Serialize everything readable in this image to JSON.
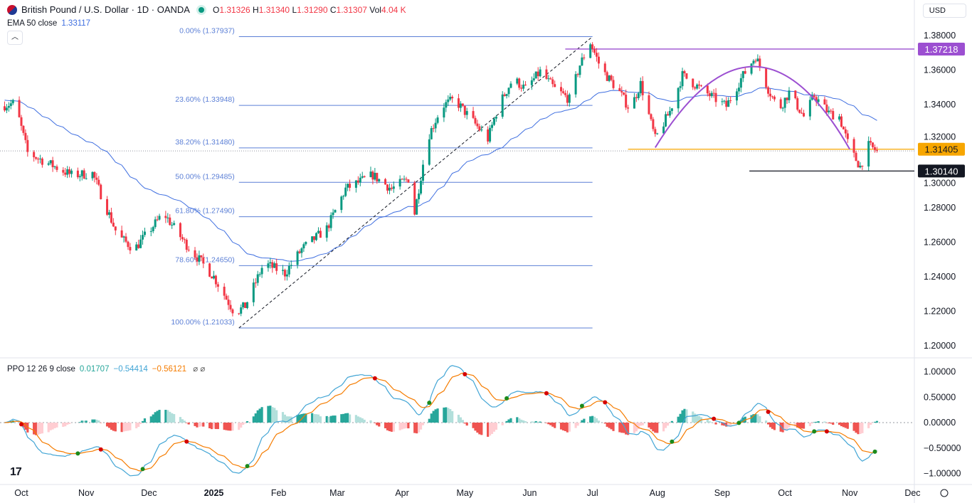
{
  "header": {
    "symbol_title": "British Pound / U.S. Dollar · 1D · OANDA",
    "ohlc": {
      "o_label": "O",
      "o": "1.31326",
      "h_label": "H",
      "h": "1.31340",
      "l_label": "L",
      "l": "1.31290",
      "c_label": "C",
      "c": "1.31307",
      "vol_label": "Vol",
      "vol": "4.04 K"
    },
    "ema_label": "EMA 50 close",
    "ema_value": "1.33117",
    "collapse_icon": "chevron-up-icon",
    "currency": "USD"
  },
  "ppo_legend": {
    "label": "PPO 12 26 9 close",
    "hist": "0.01707",
    "ppo": "−0.54414",
    "signal": "−0.56121",
    "icons": "⌀ ⌀"
  },
  "colors": {
    "up": "#089981",
    "down": "#f23645",
    "ema": "#3e6ee0",
    "fib": "#5b7fd6",
    "resistance": "#9c4fd1",
    "support": "#f7a600",
    "low": "#131722",
    "ppo": "#42a5d5",
    "signal": "#f57c00"
  },
  "chart_data": {
    "type": "candlestick",
    "title": "British Pound / U.S. Dollar · 1D · OANDA",
    "close_path": [
      [
        "2024-09-21",
        1.339
      ],
      [
        "2024-09-28",
        1.341
      ],
      [
        "2024-10-04",
        1.312
      ],
      [
        "2024-10-25",
        1.299
      ],
      [
        "2024-11-04",
        1.3
      ],
      [
        "2024-11-16",
        1.264
      ],
      [
        "2024-11-24",
        1.256
      ],
      [
        "2024-12-08",
        1.277
      ],
      [
        "2024-12-18",
        1.26
      ],
      [
        "2025-01-01",
        1.24
      ],
      [
        "2025-01-11",
        1.219
      ],
      [
        "2025-01-16",
        1.223
      ],
      [
        "2025-01-25",
        1.248
      ],
      [
        "2025-02-04",
        1.242
      ],
      [
        "2025-02-12",
        1.256
      ],
      [
        "2025-02-24",
        1.268
      ],
      [
        "2025-03-05",
        1.291
      ],
      [
        "2025-03-18",
        1.299
      ],
      [
        "2025-03-27",
        1.291
      ],
      [
        "2025-04-04",
        1.297
      ],
      [
        "2025-04-07",
        1.277
      ],
      [
        "2025-04-13",
        1.32
      ],
      [
        "2025-04-20",
        1.339
      ],
      [
        "2025-04-26",
        1.343
      ],
      [
        "2025-05-05",
        1.33
      ],
      [
        "2025-05-12",
        1.32
      ],
      [
        "2025-05-17",
        1.339
      ],
      [
        "2025-05-24",
        1.355
      ],
      [
        "2025-05-30",
        1.349
      ],
      [
        "2025-06-06",
        1.359
      ],
      [
        "2025-06-13",
        1.349
      ],
      [
        "2025-06-20",
        1.343
      ],
      [
        "2025-06-25",
        1.363
      ],
      [
        "2025-06-30",
        1.376
      ],
      [
        "2025-07-05",
        1.361
      ],
      [
        "2025-07-14",
        1.347
      ],
      [
        "2025-07-19",
        1.337
      ],
      [
        "2025-07-24",
        1.352
      ],
      [
        "2025-07-31",
        1.32
      ],
      [
        "2025-08-07",
        1.336
      ],
      [
        "2025-08-13",
        1.357
      ],
      [
        "2025-08-24",
        1.347
      ],
      [
        "2025-09-03",
        1.339
      ],
      [
        "2025-09-10",
        1.355
      ],
      [
        "2025-09-17",
        1.368
      ],
      [
        "2025-09-23",
        1.349
      ],
      [
        "2025-09-28",
        1.337
      ],
      [
        "2025-10-03",
        1.347
      ],
      [
        "2025-10-10",
        1.333
      ],
      [
        "2025-10-15",
        1.345
      ],
      [
        "2025-10-22",
        1.335
      ],
      [
        "2025-10-27",
        1.333
      ],
      [
        "2025-11-01",
        1.314
      ],
      [
        "2025-11-06",
        1.304
      ],
      [
        "2025-11-10",
        1.316
      ],
      [
        "2025-11-14",
        1.313
      ]
    ],
    "fibonacci": {
      "from": [
        "2025-01-13",
        1.21033
      ],
      "to": [
        "2025-07-01",
        1.37937
      ],
      "levels": [
        {
          "label": "0.00% (1.37937)",
          "value": 1.37937
        },
        {
          "label": "23.60% (1.33948)",
          "value": 1.33948
        },
        {
          "label": "38.20% (1.31480)",
          "value": 1.3148
        },
        {
          "label": "50.00% (1.29485)",
          "value": 1.29485
        },
        {
          "label": "61.80% (1.27490)",
          "value": 1.2749
        },
        {
          "label": "78.60% (1.24650)",
          "value": 1.2465
        },
        {
          "label": "100.00% (1.21033)",
          "value": 1.21033
        }
      ]
    },
    "horizontal_lines": [
      {
        "label": "1.37218",
        "value": 1.37218,
        "from": "2025-06-18",
        "color": "#9c4fd1"
      },
      {
        "label": "1.31405",
        "value": 1.31405,
        "from": "2025-07-18",
        "color": "#f7a600"
      },
      {
        "label": "1.30140",
        "value": 1.3014,
        "from": "2025-09-14",
        "color": "#131722"
      }
    ],
    "arc": {
      "start": [
        "2025-07-31",
        1.315
      ],
      "peak": [
        "2025-09-17",
        1.362
      ],
      "end": [
        "2025-11-01",
        1.314
      ]
    },
    "last_price": 1.31307,
    "indicators": [
      "EMA 50",
      "PPO 12 26 9"
    ],
    "price_axis_ticks": [
      "1.38000",
      "1.36000",
      "1.34000",
      "1.32000",
      "1.30000",
      "1.28000",
      "1.26000",
      "1.24000",
      "1.22000",
      "1.20000"
    ],
    "ppo_axis_ticks": [
      "1.00000",
      "0.50000",
      "0.00000",
      "−0.50000",
      "−1.00000"
    ],
    "time_axis_ticks": [
      "Oct",
      "Nov",
      "Dec",
      "2025",
      "Feb",
      "Mar",
      "Apr",
      "May",
      "Jun",
      "Jul",
      "Aug",
      "Sep",
      "Oct",
      "Nov",
      "Dec"
    ],
    "ylim": [
      1.195,
      1.385
    ],
    "ppo_ylim": [
      -1.1,
      1.1
    ]
  }
}
